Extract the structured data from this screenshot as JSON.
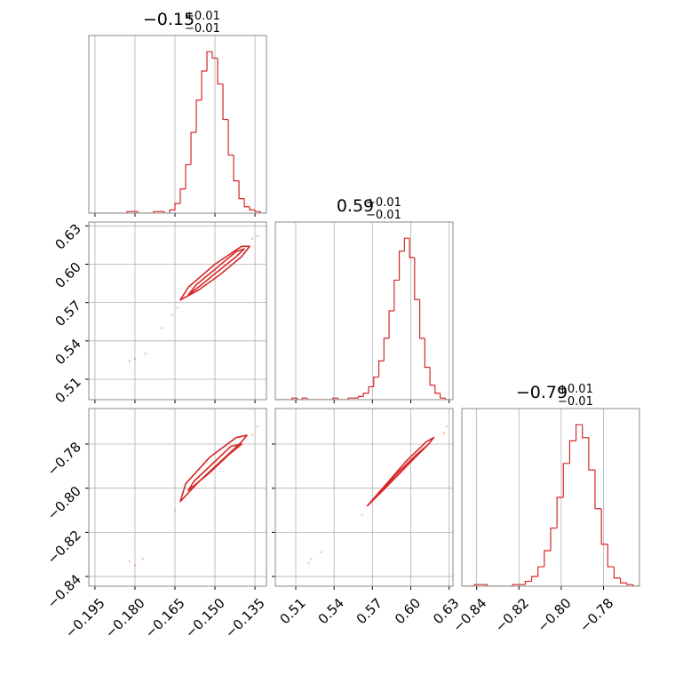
{
  "chart_data": [
    {
      "type": "histogram",
      "title": {
        "text": "−0.15",
        "upper": "+0.01",
        "lower": "−0.01"
      },
      "color": "#d62728",
      "grid": true,
      "show_xtick_labels": false,
      "bins": [
        -0.197,
        -0.195,
        -0.193,
        -0.191,
        -0.189,
        -0.187,
        -0.185,
        -0.183,
        -0.181,
        -0.179,
        -0.177,
        -0.175,
        -0.173,
        -0.171,
        -0.169,
        -0.167,
        -0.165,
        -0.163,
        -0.161,
        -0.159,
        -0.157,
        -0.155,
        -0.153,
        -0.151,
        -0.149,
        -0.147,
        -0.145,
        -0.143,
        -0.141,
        -0.139,
        -0.137,
        -0.135,
        -0.133,
        -0.131
      ],
      "values": [
        0,
        0,
        0,
        0,
        0,
        0,
        0,
        1,
        1,
        0,
        0,
        0,
        1,
        1,
        0,
        2,
        6,
        15,
        30,
        50,
        70,
        88,
        100,
        96,
        80,
        58,
        36,
        20,
        9,
        4,
        2,
        1,
        0
      ],
      "xlim": [
        -0.1973,
        -0.1307
      ],
      "ylim": [
        0,
        110
      ],
      "xticks": [
        {
          "value": -0.195,
          "label": "−0.195"
        },
        {
          "value": -0.18,
          "label": "−0.180"
        },
        {
          "value": -0.165,
          "label": "−0.165"
        },
        {
          "value": -0.15,
          "label": "−0.150"
        },
        {
          "value": -0.135,
          "label": "−0.135"
        }
      ]
    },
    {
      "type": "scatter",
      "color": "#d62728",
      "grid": true,
      "show_xtick_labels": false,
      "show_ytick_labels": true,
      "x": [
        -0.182,
        -0.18,
        -0.176,
        -0.17,
        -0.166,
        -0.134,
        -0.136,
        -0.164
      ],
      "y": [
        0.524,
        0.526,
        0.53,
        0.55,
        0.56,
        0.622,
        0.62,
        0.566
      ],
      "contours": [
        {
          "x": [
            -0.163,
            -0.156,
            -0.148,
            -0.14,
            -0.137,
            -0.14,
            -0.15,
            -0.16
          ],
          "y": [
            0.572,
            0.58,
            0.592,
            0.606,
            0.614,
            0.614,
            0.6,
            0.582
          ]
        },
        {
          "x": [
            -0.16,
            -0.155,
            -0.148,
            -0.142,
            -0.139,
            -0.142,
            -0.15,
            -0.157
          ],
          "y": [
            0.576,
            0.584,
            0.596,
            0.606,
            0.612,
            0.61,
            0.596,
            0.584
          ]
        }
      ],
      "xlim": [
        -0.1973,
        -0.1307
      ],
      "ylim": [
        0.494,
        0.633
      ],
      "xticks": [
        {
          "value": -0.195,
          "label": "−0.195"
        },
        {
          "value": -0.18,
          "label": "−0.180"
        },
        {
          "value": -0.165,
          "label": "−0.165"
        },
        {
          "value": -0.15,
          "label": "−0.150"
        },
        {
          "value": -0.135,
          "label": "−0.135"
        }
      ],
      "yticks": [
        0.51,
        0.54,
        0.57,
        {
          "value": 0.6,
          "label": "0.60"
        },
        0.63
      ]
    },
    {
      "type": "histogram",
      "title": {
        "text": "0.59",
        "upper": "+0.01",
        "lower": "−0.01"
      },
      "color": "#d62728",
      "grid": true,
      "show_xtick_labels": false,
      "bins": [
        0.495,
        0.499,
        0.503,
        0.507,
        0.511,
        0.515,
        0.519,
        0.523,
        0.527,
        0.531,
        0.535,
        0.539,
        0.543,
        0.547,
        0.551,
        0.555,
        0.559,
        0.563,
        0.567,
        0.571,
        0.575,
        0.579,
        0.583,
        0.587,
        0.591,
        0.595,
        0.599,
        0.603,
        0.607,
        0.611,
        0.615,
        0.619,
        0.623,
        0.627,
        0.631
      ],
      "values": [
        0,
        0,
        0,
        1,
        0,
        1,
        0,
        0,
        0,
        0,
        0,
        1,
        0,
        0,
        1,
        1,
        2,
        4,
        8,
        14,
        24,
        38,
        55,
        74,
        92,
        100,
        88,
        62,
        38,
        20,
        9,
        4,
        1,
        0
      ],
      "xlim": [
        0.494,
        0.633
      ],
      "ylim": [
        0,
        110
      ],
      "xticks": [
        0.51,
        0.54,
        0.57,
        {
          "value": 0.6,
          "label": "0.60"
        },
        0.63
      ]
    },
    {
      "type": "scatter",
      "color": "#d62728",
      "grid": true,
      "show_xtick_labels": true,
      "show_ytick_labels": true,
      "x": [
        -0.182,
        -0.18,
        -0.177,
        -0.165,
        -0.134,
        -0.136
      ],
      "y": [
        -0.833,
        -0.835,
        -0.832,
        -0.81,
        -0.772,
        -0.776
      ],
      "contours": [
        {
          "x": [
            -0.163,
            -0.156,
            -0.148,
            -0.14,
            -0.138,
            -0.142,
            -0.152,
            -0.161
          ],
          "y": [
            -0.806,
            -0.797,
            -0.788,
            -0.779,
            -0.776,
            -0.777,
            -0.786,
            -0.798
          ]
        },
        {
          "x": [
            -0.16,
            -0.152,
            -0.145,
            -0.14,
            -0.144,
            -0.151,
            -0.158
          ],
          "y": [
            -0.801,
            -0.793,
            -0.785,
            -0.78,
            -0.781,
            -0.789,
            -0.797
          ]
        }
      ],
      "xlim": [
        -0.1973,
        -0.1307
      ],
      "ylim": [
        -0.8444,
        -0.7639
      ],
      "xticks": [
        {
          "value": -0.195,
          "label": "−0.195"
        },
        {
          "value": -0.18,
          "label": "−0.180"
        },
        {
          "value": -0.165,
          "label": "−0.165"
        },
        {
          "value": -0.15,
          "label": "−0.150"
        },
        {
          "value": -0.135,
          "label": "−0.135"
        }
      ],
      "yticks": [
        {
          "value": -0.84,
          "label": "−0.84"
        },
        {
          "value": -0.82,
          "label": "−0.82"
        },
        {
          "value": -0.8,
          "label": "−0.80"
        },
        {
          "value": -0.78,
          "label": "−0.78"
        }
      ]
    },
    {
      "type": "scatter",
      "color": "#d62728",
      "grid": true,
      "show_xtick_labels": true,
      "show_ytick_labels": false,
      "x": [
        0.522,
        0.52,
        0.53,
        0.562,
        0.628,
        0.626
      ],
      "y": [
        -0.832,
        -0.834,
        -0.829,
        -0.812,
        -0.772,
        -0.775
      ],
      "contours": [
        {
          "x": [
            0.566,
            0.58,
            0.6,
            0.614,
            0.618,
            0.612,
            0.596,
            0.578
          ],
          "y": [
            -0.808,
            -0.8,
            -0.788,
            -0.78,
            -0.777,
            -0.779,
            -0.788,
            -0.8
          ]
        },
        {
          "x": [
            0.575,
            0.59,
            0.605,
            0.612,
            0.604,
            0.588
          ],
          "y": [
            -0.802,
            -0.794,
            -0.785,
            -0.781,
            -0.785,
            -0.794
          ]
        }
      ],
      "xlim": [
        0.494,
        0.633
      ],
      "ylim": [
        -0.8444,
        -0.7639
      ],
      "xticks": [
        0.51,
        0.54,
        0.57,
        {
          "value": 0.6,
          "label": "0.60"
        },
        0.63
      ],
      "yticks": [
        {
          "value": -0.84,
          "label": "−0.84"
        },
        {
          "value": -0.82,
          "label": "−0.82"
        },
        {
          "value": -0.8,
          "label": "−0.80"
        },
        {
          "value": -0.78,
          "label": "−0.78"
        }
      ]
    },
    {
      "type": "histogram",
      "title": {
        "text": "−0.79",
        "upper": "+0.01",
        "lower": "−0.01"
      },
      "color": "#d62728",
      "grid": true,
      "show_xtick_labels": true,
      "bins": [
        -0.847,
        -0.844,
        -0.841,
        -0.838,
        -0.835,
        -0.832,
        -0.829,
        -0.826,
        -0.823,
        -0.82,
        -0.817,
        -0.814,
        -0.811,
        -0.808,
        -0.805,
        -0.802,
        -0.799,
        -0.796,
        -0.793,
        -0.79,
        -0.787,
        -0.784,
        -0.781,
        -0.778,
        -0.775,
        -0.772,
        -0.769,
        -0.766,
        -0.763
      ],
      "values": [
        0,
        0,
        1,
        1,
        0,
        0,
        0,
        0,
        1,
        1,
        3,
        6,
        12,
        22,
        36,
        55,
        76,
        90,
        100,
        92,
        72,
        48,
        26,
        12,
        5,
        2,
        1,
        0
      ],
      "xlim": [
        -0.847,
        -0.763
      ],
      "ylim": [
        0,
        110
      ],
      "xticks": [
        {
          "value": -0.84,
          "label": "−0.84"
        },
        {
          "value": -0.82,
          "label": "−0.82"
        },
        {
          "value": -0.8,
          "label": "−0.80"
        },
        {
          "value": -0.78,
          "label": "−0.78"
        }
      ]
    }
  ]
}
